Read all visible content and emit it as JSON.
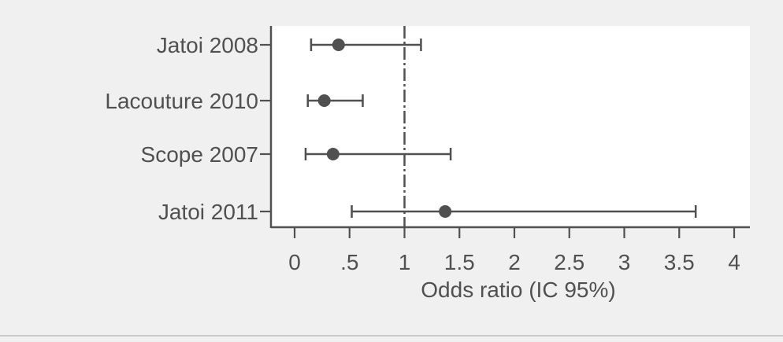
{
  "chart_data": {
    "type": "forest",
    "xlabel": "Odds ratio (IC 95%)",
    "ylabel": "",
    "title": "",
    "xlim": [
      0,
      4
    ],
    "xticks": [
      {
        "value": 0,
        "label": "0"
      },
      {
        "value": 0.5,
        "label": ".5"
      },
      {
        "value": 1,
        "label": "1"
      },
      {
        "value": 1.5,
        "label": "1.5"
      },
      {
        "value": 2,
        "label": "2"
      },
      {
        "value": 2.5,
        "label": "2.5"
      },
      {
        "value": 3,
        "label": "3"
      },
      {
        "value": 3.5,
        "label": "3.5"
      },
      {
        "value": 4,
        "label": "4"
      }
    ],
    "reference_line": 1,
    "studies": [
      {
        "label": "Jatoi 2008",
        "or": 0.4,
        "ci_low": 0.15,
        "ci_high": 1.15
      },
      {
        "label": "Lacouture 2010",
        "or": 0.27,
        "ci_low": 0.12,
        "ci_high": 0.62
      },
      {
        "label": "Scope 2007",
        "or": 0.35,
        "ci_low": 0.1,
        "ci_high": 1.42
      },
      {
        "label": "Jatoi 2011",
        "or": 1.37,
        "ci_low": 0.52,
        "ci_high": 3.65
      }
    ],
    "grid": false,
    "legend": "none"
  },
  "colors": {
    "background": "#f0f0f0",
    "plot_background": "#ffffff",
    "ink": "#505050",
    "separator": "#c8c8c8"
  }
}
